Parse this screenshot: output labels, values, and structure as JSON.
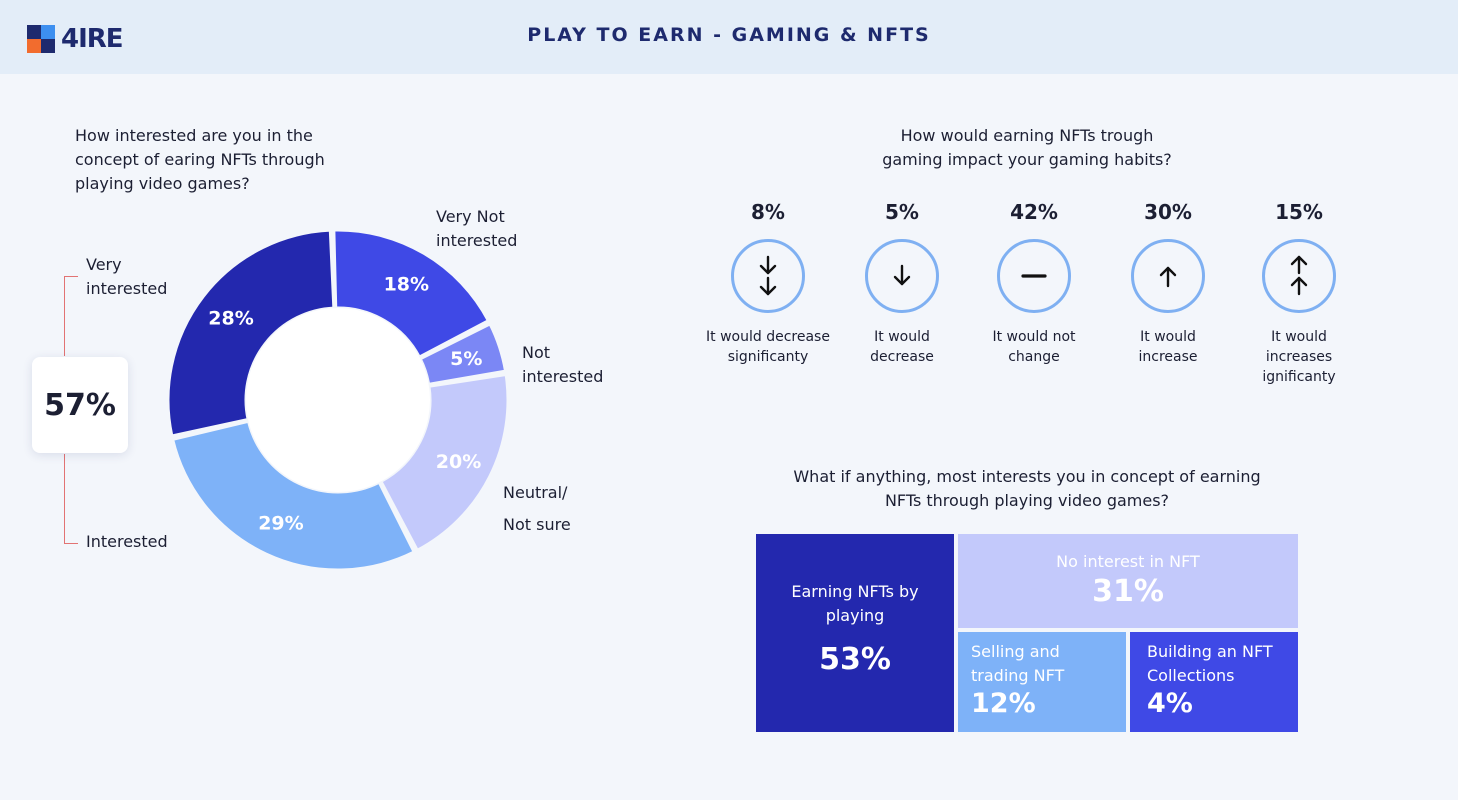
{
  "header": {
    "logo_text": "4IRE",
    "title": "PLAY TO EARN - GAMING & NFTS"
  },
  "colors": {
    "header_bg": "#e3edf8",
    "very_not_interested": "#3f49e6",
    "not_interested": "#7b87f5",
    "neutral": "#c3c9fb",
    "interested": "#7eb2f8",
    "very_interested": "#2328ae"
  },
  "donut": {
    "question": "How interested are you in the concept of earing NFTs through playing video games?",
    "group_total": "57%",
    "very_interested_label": "Very interested",
    "interested_label": "Interested"
  },
  "impact": {
    "question": "How would earning NFTs trough gaming impact your gaming habits?"
  },
  "treemap_question": "What if anything, most interests you in concept of earning NFTs through playing video games?",
  "chart_data": [
    {
      "type": "pie",
      "title": "How interested are you in the concept of earing NFTs through playing video games?",
      "slices": [
        {
          "label": "Very Not interested",
          "value": 18,
          "display": "18%",
          "color": "#3f49e6"
        },
        {
          "label": "Not interested",
          "value": 5,
          "display": "5%",
          "color": "#7b87f5"
        },
        {
          "label": "Neutral/ Not sure",
          "value": 20,
          "display": "20%",
          "color": "#c3c9fb"
        },
        {
          "label": "Interested",
          "value": 29,
          "display": "29%",
          "color": "#7eb2f8"
        },
        {
          "label": "Very interested",
          "value": 28,
          "display": "28%",
          "color": "#2328ae"
        }
      ],
      "group_total": {
        "label": "Very interested + Interested",
        "value": 57
      }
    },
    {
      "type": "bar",
      "title": "How would earning NFTs trough gaming impact your gaming habits?",
      "categories": [
        "It would decrease significanty",
        "It would decrease",
        "It would not change",
        "It would increase",
        "It would increases ignificanty"
      ],
      "values": [
        8,
        5,
        42,
        30,
        15
      ],
      "display": [
        "8%",
        "5%",
        "42%",
        "30%",
        "15%"
      ],
      "icons": [
        "double-arrow-down-icon",
        "arrow-down-icon",
        "minus-icon",
        "arrow-up-icon",
        "double-arrow-up-icon"
      ]
    },
    {
      "type": "table",
      "title": "What if anything, most interests you in concept of earning NFTs through playing video games?",
      "rows": [
        {
          "label": "Earning NFTs by playing",
          "value": 53,
          "display": "53%",
          "color": "#2328ae"
        },
        {
          "label": "No interest in NFT",
          "value": 31,
          "display": "31%",
          "color": "#c3c9fb"
        },
        {
          "label": "Selling and trading NFT",
          "value": 12,
          "display": "12%",
          "color": "#7eb2f8"
        },
        {
          "label": "Building an NFT Collections",
          "value": 4,
          "display": "4%",
          "color": "#3f49e6"
        }
      ]
    }
  ]
}
